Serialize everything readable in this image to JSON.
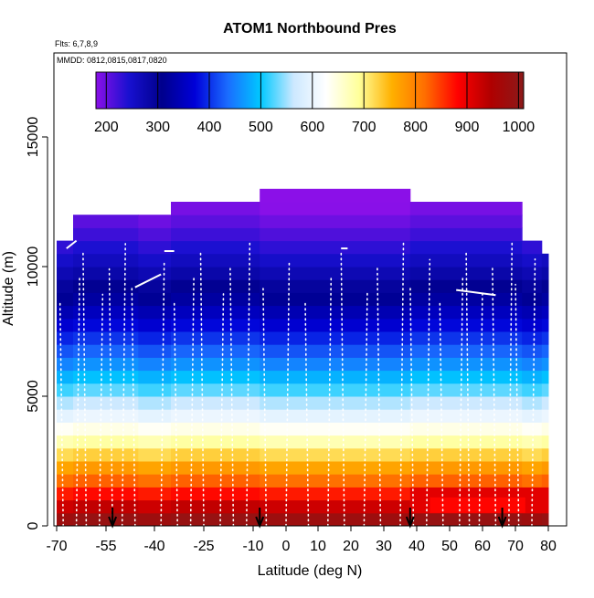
{
  "chart_data": {
    "type": "heatmap",
    "title": "ATOM1 Northbound Pres",
    "annotations": [
      "Flts: 6,7,8,9",
      "MMDD: 0812,0815,0817,0820"
    ],
    "xlabel": "Latitude (deg N)",
    "ylabel": "Altitude (m)",
    "xlim": [
      -70,
      80
    ],
    "ylim": [
      0,
      18000
    ],
    "x_ticks": [
      -70,
      -55,
      -40,
      -25,
      -10,
      0,
      10,
      20,
      30,
      40,
      50,
      60,
      70,
      80
    ],
    "x_tick_labels": [
      "-70",
      "-55",
      "-40",
      "-25",
      "-10",
      "0",
      "10",
      "20",
      "30",
      "40",
      "50",
      "60",
      "70",
      "80"
    ],
    "y_ticks": [
      0,
      5000,
      10000,
      15000
    ],
    "y_tick_labels": [
      "0",
      "5000",
      "10000",
      "15000"
    ],
    "colorbar": {
      "min": 180,
      "max": 1010,
      "ticks": [
        200,
        300,
        400,
        500,
        600,
        700,
        800,
        900,
        1000
      ],
      "tick_labels": [
        "200",
        "300",
        "400",
        "500",
        "600",
        "700",
        "800",
        "900",
        "1000"
      ],
      "colors": [
        "#8b10e8",
        "#1810d0",
        "#00008c",
        "#0000d8",
        "#1a6cff",
        "#00c8ff",
        "#cce8ff",
        "#ffffff",
        "#ffff9a",
        "#ffb000",
        "#ff6e00",
        "#ff0000",
        "#b00000",
        "#8b1a1a"
      ]
    },
    "altitude_bin_m": 500,
    "segments": [
      {
        "lat_start": -70,
        "lat_end": -65,
        "top_alt": 11000
      },
      {
        "lat_start": -65,
        "lat_end": -45,
        "top_alt": 11800
      },
      {
        "lat_start": -45,
        "lat_end": -35,
        "top_alt": 12000
      },
      {
        "lat_start": -35,
        "lat_end": -8,
        "top_alt": 12500
      },
      {
        "lat_start": -8,
        "lat_end": 38,
        "top_alt": 12900
      },
      {
        "lat_start": 38,
        "lat_end": 72,
        "top_alt": 12500
      },
      {
        "lat_start": 72,
        "lat_end": 78,
        "top_alt": 11000
      },
      {
        "lat_start": 78,
        "lat_end": 80,
        "top_alt": 10500
      }
    ],
    "surface_anomaly": {
      "lat_start": 44,
      "lat_end": 73,
      "alt_start": 500,
      "alt_end": 1100
    },
    "flight_tracks": {
      "profile_latitudes": [
        -68,
        -64,
        -61,
        -57,
        -53,
        -50,
        -46,
        -38,
        -33,
        -29,
        -25,
        -20,
        -16,
        -12,
        -6,
        0,
        7,
        13,
        18,
        24,
        29,
        35,
        39,
        43,
        48,
        53,
        56,
        59,
        64,
        68,
        71,
        75
      ],
      "level_legs": [
        {
          "lat_start": -46,
          "lat_end": -38,
          "alt_start": 9200,
          "alt_end": 9700
        },
        {
          "lat_start": 52,
          "lat_end": 64,
          "alt_start": 9100,
          "alt_end": 8900
        },
        {
          "lat_start": -67,
          "lat_end": -64,
          "alt_start": 10700,
          "alt_end": 11000
        },
        {
          "lat_start": -37,
          "lat_end": -34,
          "alt_start": 10600,
          "alt_end": 10600
        },
        {
          "lat_start": 17,
          "lat_end": 19,
          "alt_start": 10700,
          "alt_end": 10700
        }
      ]
    },
    "arrow_latitudes": [
      -53,
      -8,
      38,
      66
    ]
  }
}
